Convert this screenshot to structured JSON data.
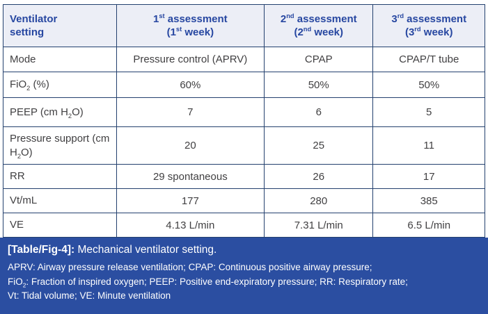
{
  "colors": {
    "band_blue": "#2b4ea1",
    "header_bg": "#eceef6",
    "header_text": "#2747a1",
    "border_navy": "#23406e",
    "body_text": "#414042",
    "footnote_text": "#ffffff"
  },
  "table": {
    "headers": [
      "Ventilator<br>setting",
      "1<sup>st</sup> assessment<br>(1<sup>st</sup> week)",
      "2<sup>nd</sup> assessment<br>(2<sup>nd</sup> week)",
      "3<sup>rd</sup> assessment<br>(3<sup>rd</sup> week)"
    ],
    "rows": [
      {
        "label": "Mode",
        "values": [
          "Pressure control (APRV)",
          "CPAP",
          "CPAP/T tube"
        ]
      },
      {
        "label": "FiO<sub>2</sub> (%)",
        "values": [
          "60%",
          "50%",
          "50%"
        ]
      },
      {
        "label": "PEEP (cm H<sub>2</sub>O)",
        "values": [
          "7",
          "6",
          "5"
        ]
      },
      {
        "label": "Pressure support (cm H<sub>2</sub>O)",
        "values": [
          "20",
          "25",
          "11"
        ]
      },
      {
        "label": "RR",
        "values": [
          "29 spontaneous",
          "26",
          "17"
        ]
      },
      {
        "label": "Vt/mL",
        "values": [
          "177",
          "280",
          "385"
        ]
      },
      {
        "label": "VE",
        "values": [
          "4.13 L/min",
          "7.31 L/min",
          "6.5 L/min"
        ]
      }
    ]
  },
  "caption": {
    "tag": "[Table/Fig-4]:",
    "title": "Mechanical ventilator setting.",
    "footnotes": [
      "APRV: Airway pressure release ventilation; CPAP: Continuous positive airway pressure;",
      "FiO<sub>2</sub>: Fraction of inspired oxygen; PEEP: Positive end-expiratory pressure; RR: Respiratory rate;",
      "Vt: Tidal volume; VE: Minute ventilation"
    ]
  }
}
